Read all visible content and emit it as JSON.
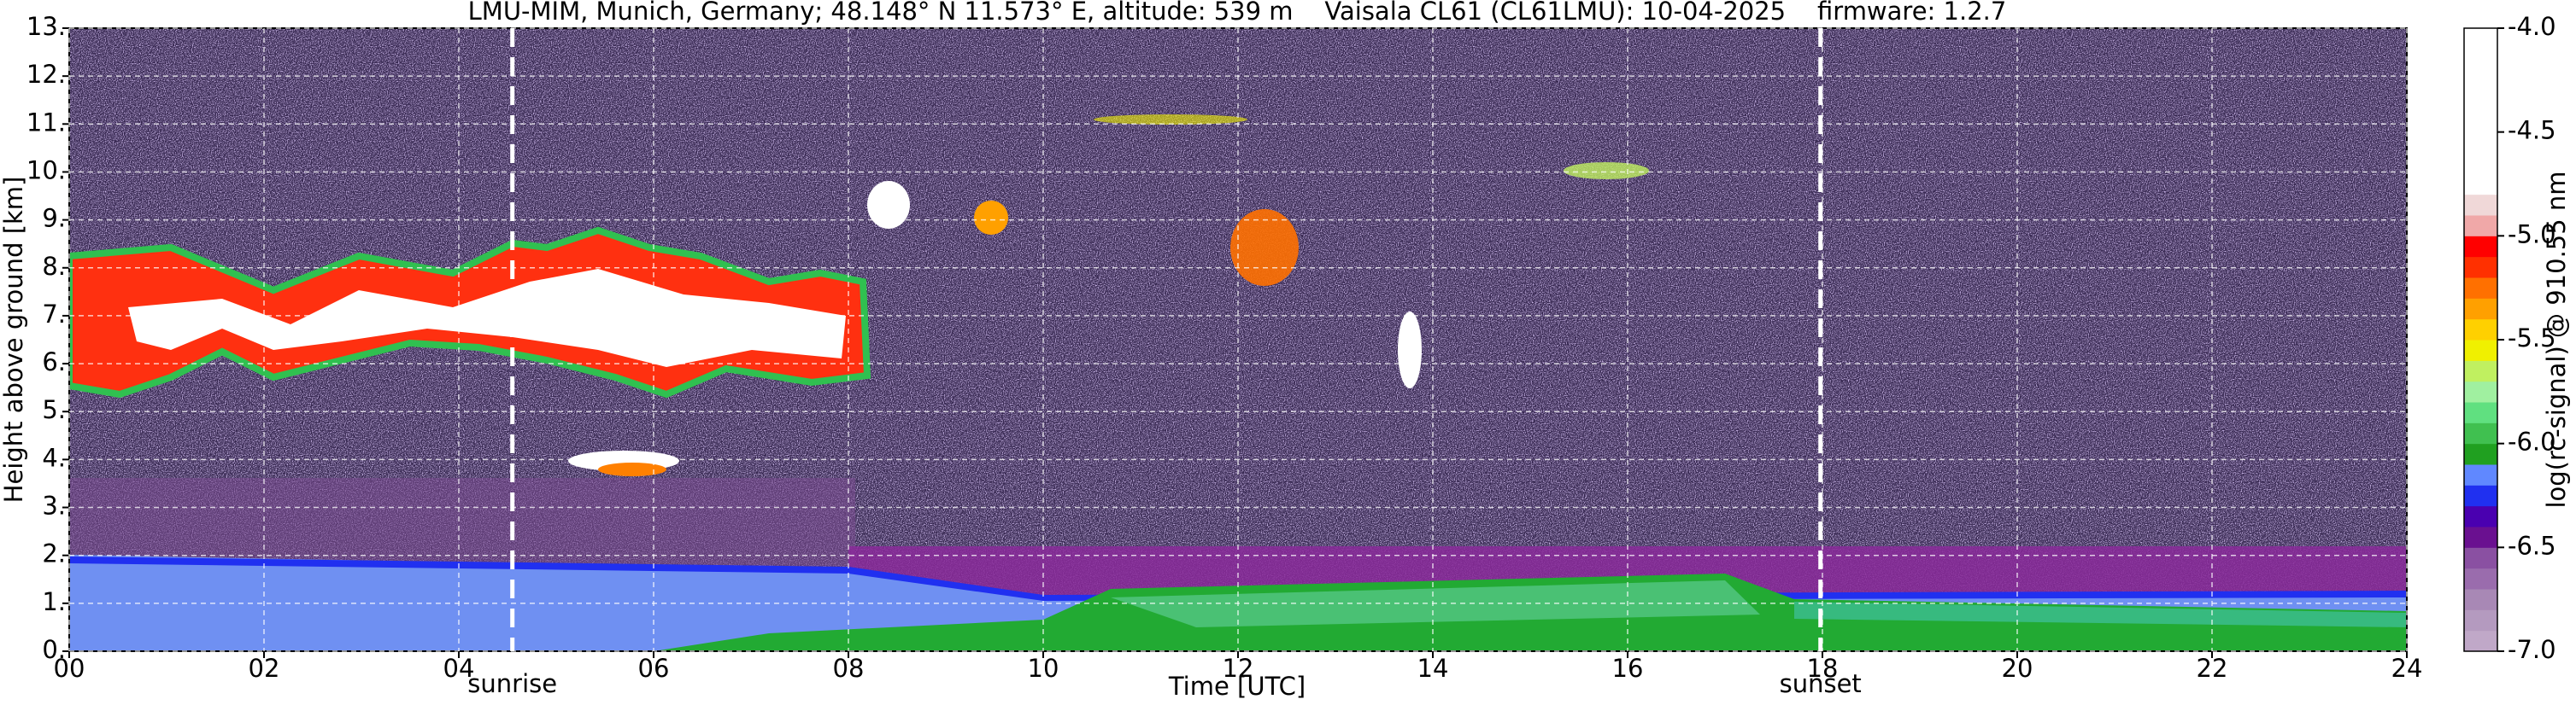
{
  "chart_data": {
    "type": "heatmap",
    "title": "LMU-MIM, Munich, Germany; 48.148° N 11.573° E, altitude: 539 m    Vaisala CL61 (CL61LMU): 10-04-2025    firmware: 1.2.7",
    "xlabel": "Time [UTC]",
    "ylabel": "Height above ground [km]",
    "xlim": [
      0,
      24
    ],
    "xticks": [
      {
        "value": 0,
        "label": "00"
      },
      {
        "value": 2,
        "label": "02"
      },
      {
        "value": 4,
        "label": "04"
      },
      {
        "value": 6,
        "label": "06"
      },
      {
        "value": 8,
        "label": "08"
      },
      {
        "value": 10,
        "label": "10"
      },
      {
        "value": 12,
        "label": "12"
      },
      {
        "value": 14,
        "label": "14"
      },
      {
        "value": 16,
        "label": "16"
      },
      {
        "value": 18,
        "label": "18"
      },
      {
        "value": 20,
        "label": "20"
      },
      {
        "value": 22,
        "label": "22"
      },
      {
        "value": 24,
        "label": "24"
      }
    ],
    "ylim": [
      0,
      13
    ],
    "yticks": [
      {
        "value": 0,
        "label": "0."
      },
      {
        "value": 1,
        "label": "1."
      },
      {
        "value": 2,
        "label": "2."
      },
      {
        "value": 3,
        "label": "3."
      },
      {
        "value": 4,
        "label": "4."
      },
      {
        "value": 5,
        "label": "5."
      },
      {
        "value": 6,
        "label": "6."
      },
      {
        "value": 7,
        "label": "7."
      },
      {
        "value": 8,
        "label": "8."
      },
      {
        "value": 9,
        "label": "9."
      },
      {
        "value": 10,
        "label": "10."
      },
      {
        "value": 11,
        "label": "11."
      },
      {
        "value": 12,
        "label": "12."
      },
      {
        "value": 13,
        "label": "13."
      }
    ],
    "grid": true,
    "annotations": [
      {
        "x": 4.55,
        "text": "sunrise"
      },
      {
        "x": 17.98,
        "text": "sunset"
      }
    ],
    "colorbar": {
      "label": "log(rc-signal) @ 910.55 nm",
      "clim": [
        -7,
        -4
      ],
      "ticks": [
        {
          "value": -4,
          "label": "-4.0"
        },
        -4.5,
        {
          "value": -5,
          "label": "-5.0"
        },
        -5.5,
        {
          "value": -6,
          "label": "-6.0"
        },
        -6.5,
        {
          "value": -7,
          "label": "-7.0"
        }
      ],
      "colors": [
        "#c0a8c8",
        "#b49abf",
        "#a888b5",
        "#9a6cad",
        "#8a50a2",
        "#6a1090",
        "#4a00b0",
        "#2030f0",
        "#6088ff",
        "#20a020",
        "#40c050",
        "#60e080",
        "#a0f0a0",
        "#c0f060",
        "#f0f000",
        "#ffd000",
        "#ffa000",
        "#ff7000",
        "#ff3000",
        "#ff0000",
        "#f0a8a8",
        "#f0d8d8",
        "#ffffff",
        "#ffffff",
        "#ffffff",
        "#ffffff",
        "#ffffff",
        "#ffffff",
        "#ffffff",
        "#ffffff"
      ]
    }
  }
}
